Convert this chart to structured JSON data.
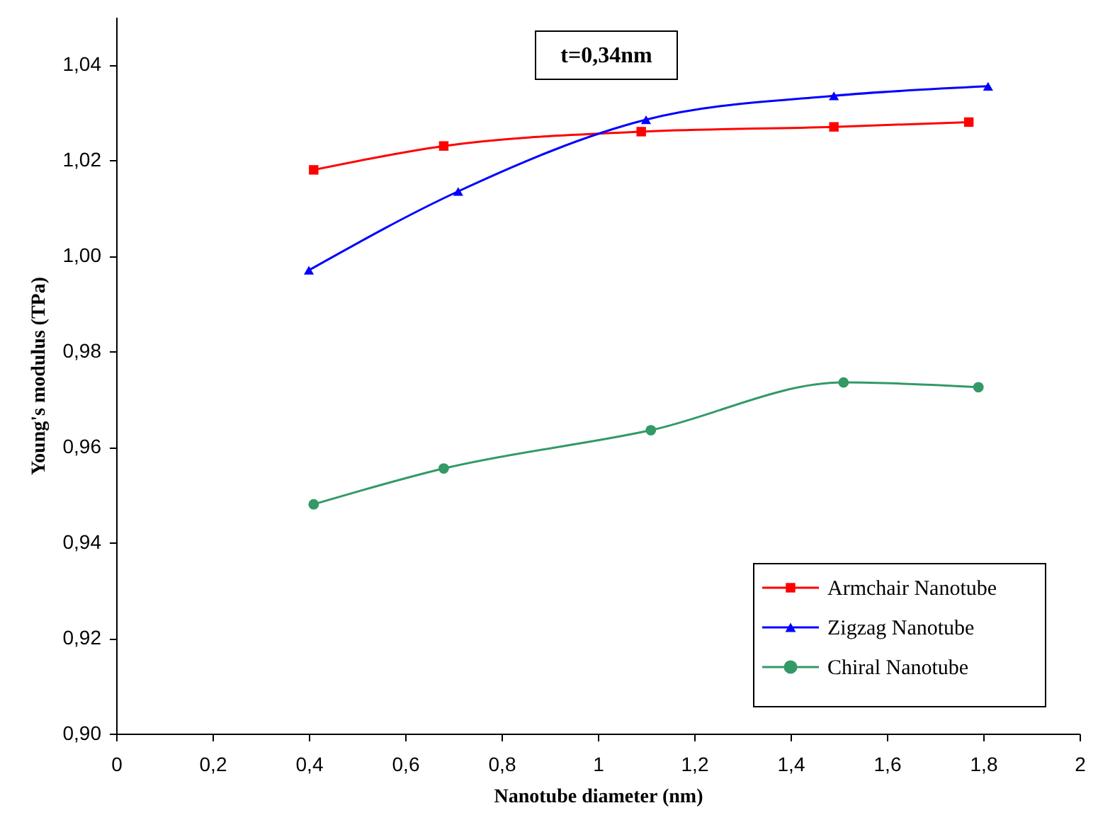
{
  "chart_data": {
    "type": "line",
    "xlabel": "Nanotube diameter (nm)",
    "ylabel": "Young's modulus (TPa)",
    "annotations": [
      "t=0,34nm"
    ],
    "xlim": [
      0,
      2
    ],
    "xticks": [
      0,
      {
        "value": 0.2,
        "label": "0,2"
      },
      {
        "value": 0.4,
        "label": "0,4"
      },
      {
        "value": 0.6,
        "label": "0,6"
      },
      {
        "value": 0.8,
        "label": "0,8"
      },
      1,
      {
        "value": 1.2,
        "label": "1,2"
      },
      {
        "value": 1.4,
        "label": "1,4"
      },
      {
        "value": 1.6,
        "label": "1,6"
      },
      {
        "value": 1.8,
        "label": "1,8"
      },
      2
    ],
    "ylim": [
      0.9,
      1.05
    ],
    "yticks": [
      {
        "value": 0.9,
        "label": "0,90"
      },
      {
        "value": 0.92,
        "label": "0,92"
      },
      {
        "value": 0.94,
        "label": "0,94"
      },
      {
        "value": 0.96,
        "label": "0,96"
      },
      {
        "value": 0.98,
        "label": "0,98"
      },
      {
        "value": 1.0,
        "label": "1,00"
      },
      {
        "value": 1.02,
        "label": "1,02"
      },
      {
        "value": 1.04,
        "label": "1,04"
      }
    ],
    "grid": false,
    "legend": "bottom right",
    "series": [
      {
        "name": "Armchair Nanotube",
        "color": "#ff0000",
        "marker": "square",
        "x": [
          0.41,
          0.68,
          1.09,
          1.49,
          1.77
        ],
        "values": [
          1.018,
          1.023,
          1.026,
          1.027,
          1.028
        ]
      },
      {
        "name": "Zigzag Nanotube",
        "color": "#0000ff",
        "marker": "triangle",
        "x": [
          0.4,
          0.71,
          1.1,
          1.49,
          1.81
        ],
        "values": [
          0.997,
          1.0135,
          1.0285,
          1.0335,
          1.0355
        ]
      },
      {
        "name": "Chiral Nanotube",
        "color": "#339966",
        "marker": "circle",
        "x": [
          0.41,
          0.68,
          1.11,
          1.51,
          1.79
        ],
        "values": [
          0.948,
          0.9555,
          0.9635,
          0.9735,
          0.9725
        ]
      }
    ]
  }
}
